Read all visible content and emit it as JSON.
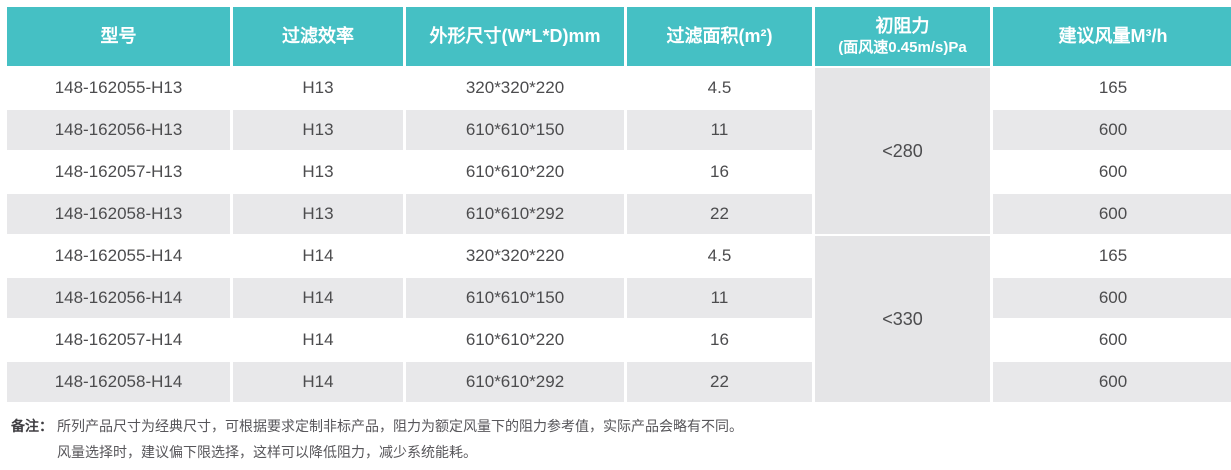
{
  "table": {
    "headers": {
      "model": "型号",
      "efficiency": "过滤效率",
      "dimensions": "外形尺寸(W*L*D)mm",
      "area": "过滤面积(m²)",
      "resistance_line1": "初阻力",
      "resistance_line2": "(面风速0.45m/s)Pa",
      "airflow": "建议风量M³/h"
    },
    "groups": [
      {
        "resistance": "<280",
        "rows": [
          {
            "model": "148-162055-H13",
            "efficiency": "H13",
            "dimensions": "320*320*220",
            "area": "4.5",
            "airflow": "165"
          },
          {
            "model": "148-162056-H13",
            "efficiency": "H13",
            "dimensions": "610*610*150",
            "area": "11",
            "airflow": "600"
          },
          {
            "model": "148-162057-H13",
            "efficiency": "H13",
            "dimensions": "610*610*220",
            "area": "16",
            "airflow": "600"
          },
          {
            "model": "148-162058-H13",
            "efficiency": "H13",
            "dimensions": "610*610*292",
            "area": "22",
            "airflow": "600"
          }
        ]
      },
      {
        "resistance": "<330",
        "rows": [
          {
            "model": "148-162055-H14",
            "efficiency": "H14",
            "dimensions": "320*320*220",
            "area": "4.5",
            "airflow": "165"
          },
          {
            "model": "148-162056-H14",
            "efficiency": "H14",
            "dimensions": "610*610*150",
            "area": "11",
            "airflow": "600"
          },
          {
            "model": "148-162057-H14",
            "efficiency": "H14",
            "dimensions": "610*610*220",
            "area": "16",
            "airflow": "600"
          },
          {
            "model": "148-162058-H14",
            "efficiency": "H14",
            "dimensions": "610*610*292",
            "area": "22",
            "airflow": "600"
          }
        ]
      }
    ]
  },
  "notes": {
    "label": "备注：",
    "lines": [
      "所列产品尺寸为经典尺寸，可根据要求定制非标产品，阻力为额定风量下的阻力参考值，实际产品会略有不同。",
      "风量选择时，建议偏下限选择，这样可以降低阻力，减少系统能耗。"
    ]
  },
  "colors": {
    "header_bg": "#45c0c4",
    "header_text": "#ffffff",
    "row_alt_bg": "#e8e8ea",
    "merged_cell_bg": "#e5e5e7",
    "body_text": "#4c4c4e"
  }
}
